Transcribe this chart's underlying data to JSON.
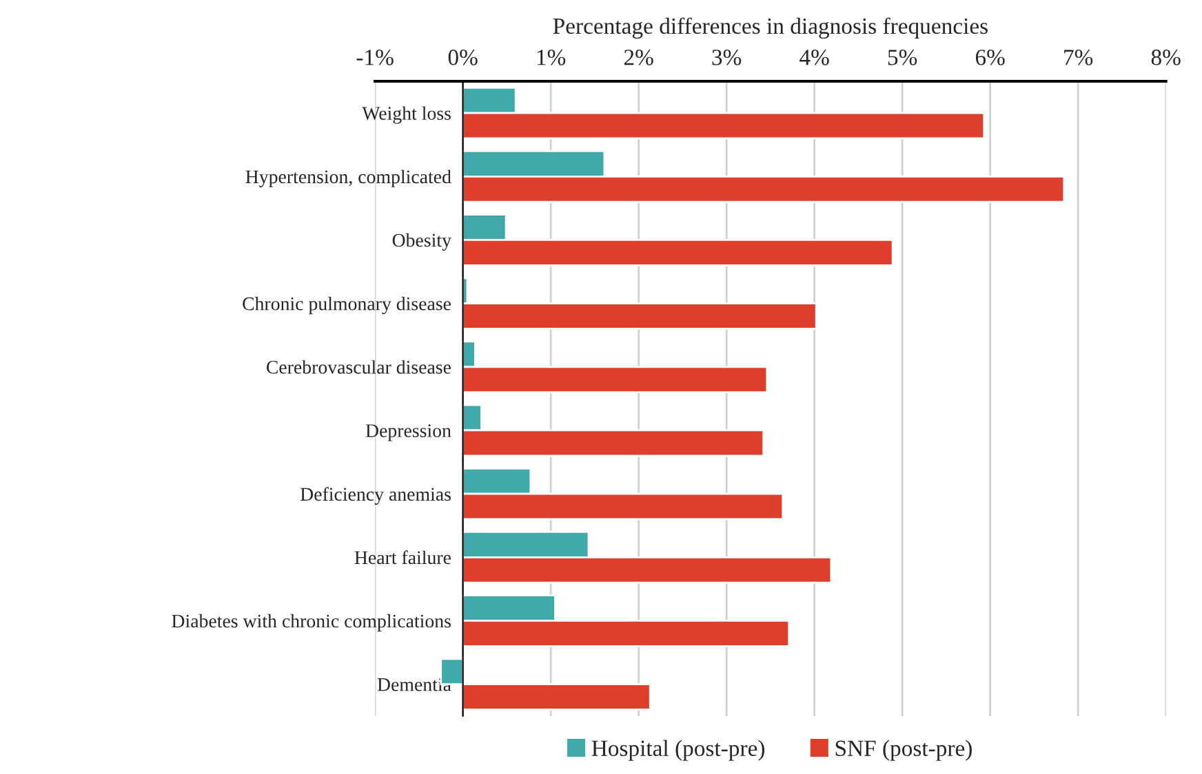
{
  "chart_data": {
    "type": "bar",
    "orientation": "horizontal",
    "xlabel": "Percentage differences in diagnosis frequencies",
    "categories": [
      "Weight loss",
      "Hypertension, complicated",
      "Obesity",
      "Chronic pulmonary disease",
      "Cerebrovascular disease",
      "Depression",
      "Deficiency anemias",
      "Heart failure",
      "Diabetes with chronic complications",
      "Dementia"
    ],
    "series": [
      {
        "name": "Hospital (post-pre)",
        "color": "#40aaaa",
        "values": [
          0.6,
          1.61,
          0.49,
          0.05,
          0.14,
          0.21,
          0.77,
          1.43,
          1.05,
          -0.25
        ]
      },
      {
        "name": "SNF (post-pre)",
        "color": "#de3e2c",
        "values": [
          5.93,
          6.84,
          4.89,
          4.02,
          3.46,
          3.42,
          3.64,
          4.19,
          3.71,
          2.13
        ]
      }
    ],
    "xlim": [
      -1,
      8
    ],
    "xticks": [
      {
        "value": -1,
        "label": "-1%"
      },
      {
        "value": 0,
        "label": "0%"
      },
      {
        "value": 1,
        "label": "1%"
      },
      {
        "value": 2,
        "label": "2%"
      },
      {
        "value": 3,
        "label": "3%"
      },
      {
        "value": 4,
        "label": "4%"
      },
      {
        "value": 5,
        "label": "5%"
      },
      {
        "value": 6,
        "label": "6%"
      },
      {
        "value": 7,
        "label": "7%"
      },
      {
        "value": 8,
        "label": "8%"
      }
    ],
    "grid": "x",
    "legend": "bottom"
  }
}
